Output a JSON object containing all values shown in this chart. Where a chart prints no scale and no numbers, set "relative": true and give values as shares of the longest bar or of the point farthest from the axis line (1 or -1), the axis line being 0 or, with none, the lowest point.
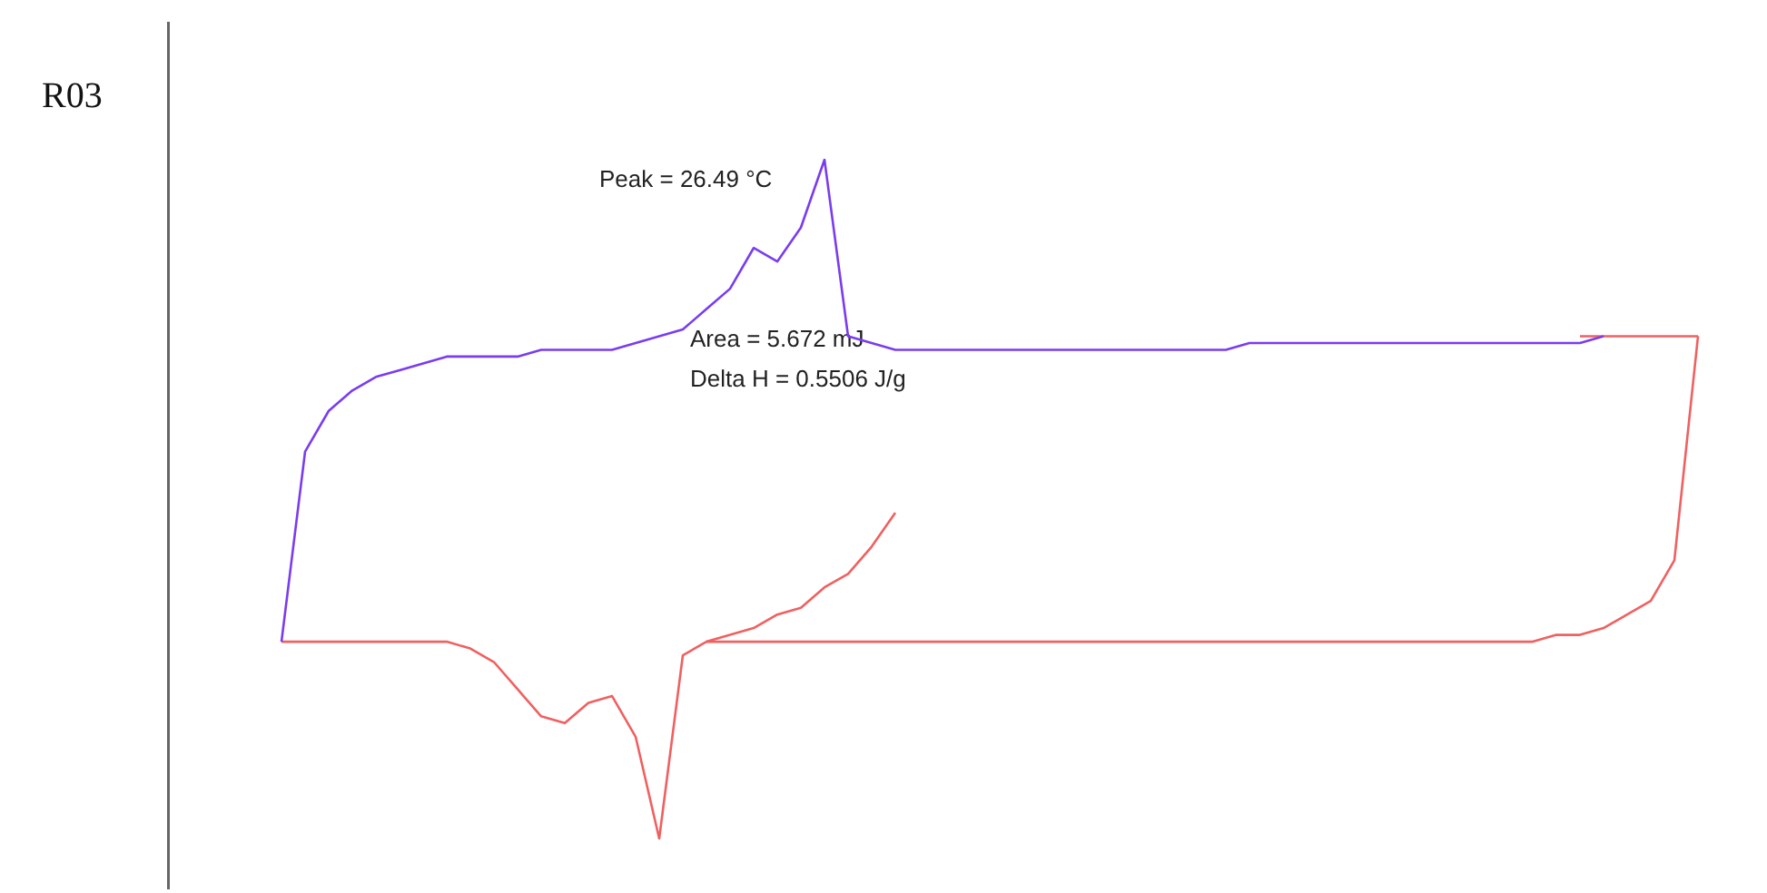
{
  "chart_data": {
    "type": "line",
    "title": "R03",
    "relative": true,
    "marker": "none",
    "grid": false,
    "annotations": [
      "Peak = 26.49 °C",
      "Area = 5.672 mJ",
      "Delta H = 0.5506 J/g"
    ],
    "categories": [
      null,
      null,
      null,
      null,
      null,
      null,
      null,
      null,
      null,
      null,
      null,
      null,
      null,
      null,
      null,
      null,
      null,
      null,
      null,
      null,
      null,
      null,
      null,
      null,
      null,
      null,
      null,
      null,
      null,
      null,
      null,
      null,
      null,
      null,
      null,
      null,
      null,
      null,
      null,
      null,
      null,
      null,
      null,
      null,
      null,
      null,
      null,
      null,
      null,
      null,
      null,
      null,
      null,
      null,
      null,
      null,
      null,
      null,
      null,
      null,
      null
    ],
    "series": [
      {
        "color": "#f06060",
        "values": [
          0.29,
          0.29,
          0.29,
          0.29,
          0.29,
          0.29,
          0.29,
          0.29,
          0.28,
          0.26,
          0.22,
          0.18,
          0.17,
          0.2,
          0.21,
          0.15,
          0,
          0.27,
          0.29,
          0.29,
          0.29,
          0.29,
          0.29,
          0.29,
          0.29,
          0.29,
          0.29,
          0.29,
          0.29,
          0.29,
          0.29,
          0.29,
          0.29,
          0.29,
          0.29,
          0.29,
          0.29,
          0.29,
          0.29,
          0.29,
          0.29,
          0.29,
          0.29,
          0.29,
          0.29,
          0.29,
          0.29,
          0.29,
          0.29,
          0.29,
          0.29,
          0.29,
          0.29,
          0.29,
          0.3,
          0.3,
          0.31,
          0.33,
          0.35,
          0.41,
          0.74
        ]
      },
      {
        "color": "#f06060",
        "values": [
          null,
          null,
          null,
          null,
          null,
          null,
          null,
          null,
          null,
          null,
          null,
          null,
          null,
          null,
          null,
          null,
          null,
          null,
          0.29,
          0.3,
          0.31,
          0.33,
          0.34,
          0.37,
          0.39,
          0.43,
          0.48,
          null,
          null,
          null,
          null,
          null,
          null,
          null,
          null,
          null,
          null,
          null,
          null,
          null,
          null,
          null,
          null,
          null,
          null,
          null,
          null,
          null,
          null,
          null,
          null,
          null,
          null,
          null,
          null,
          null,
          null,
          null,
          null,
          null,
          null
        ]
      },
      {
        "color": "#f06060",
        "values": [
          null,
          null,
          null,
          null,
          null,
          null,
          null,
          null,
          null,
          null,
          null,
          null,
          null,
          null,
          null,
          null,
          null,
          null,
          null,
          null,
          null,
          null,
          null,
          null,
          null,
          null,
          null,
          null,
          null,
          null,
          null,
          null,
          null,
          null,
          null,
          null,
          null,
          null,
          null,
          null,
          null,
          null,
          null,
          null,
          null,
          null,
          null,
          null,
          null,
          null,
          null,
          null,
          null,
          null,
          null,
          0.74,
          0.74,
          0.74,
          0.74,
          0.74,
          0.74
        ]
      },
      {
        "color": "#7a3cf0",
        "values": [
          0.29,
          0.57,
          0.63,
          0.66,
          0.68,
          0.69,
          0.7,
          0.71,
          0.71,
          0.71,
          0.71,
          0.72,
          0.72,
          0.72,
          0.72,
          0.73,
          0.74,
          0.75,
          0.78,
          0.81,
          0.87,
          0.85,
          0.9,
          1,
          0.74,
          0.73,
          0.72,
          0.72,
          0.72,
          0.72,
          0.72,
          0.72,
          0.72,
          0.72,
          0.72,
          0.72,
          0.72,
          0.72,
          0.72,
          0.72,
          0.72,
          0.73,
          0.73,
          0.73,
          0.73,
          0.73,
          0.73,
          0.73,
          0.73,
          0.73,
          0.73,
          0.73,
          0.73,
          0.73,
          0.73,
          0.73,
          0.74,
          null,
          null,
          null,
          null
        ]
      }
    ]
  }
}
